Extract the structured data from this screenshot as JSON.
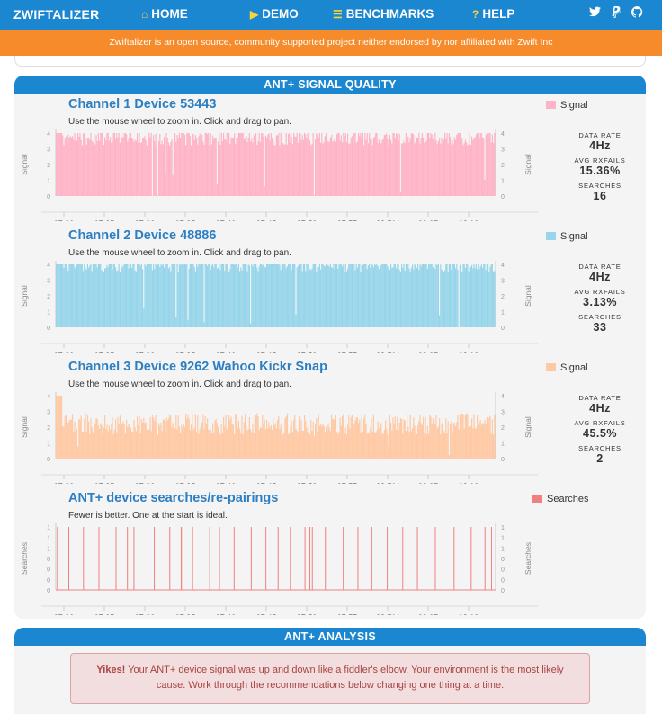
{
  "nav": {
    "brand": "ZWIFTALIZER",
    "home": "HOME",
    "demo": "DEMO",
    "benchmarks": "BENCHMARKS",
    "help": "HELP",
    "social": {
      "twitter": "twitter-icon",
      "paypal": "paypal-icon",
      "github": "github-icon"
    }
  },
  "banner": "Zwiftalizer is an open source, community supported project neither endorsed by nor affiliated with Zwift Inc",
  "signal_panel": {
    "title": "ANT+ SIGNAL QUALITY"
  },
  "analysis_panel": {
    "title": "ANT+ ANALYSIS",
    "alert_strong": "Yikes!",
    "alert_text": " Your ANT+ device signal was up and down like a fiddler's elbow. Your environment is the most likely cause. Work through the recommendations below changing one thing at a time."
  },
  "colors": {
    "ch1": "#ffb3c6",
    "ch2": "#97d5ea",
    "ch3": "#ffc9a3",
    "searches": "#f08080",
    "accent": "#1a87d0",
    "banner": "#f58b2a"
  },
  "channels": [
    {
      "title": "Channel 1 Device 53443",
      "subtitle": "Use the mouse wheel to zoom in. Click and drag to pan.",
      "legend": "Signal",
      "stats": {
        "data_rate_label": "DATA RATE",
        "data_rate": "4Hz",
        "avg_rxfails_label": "AVG RXFAILS",
        "avg_rxfails": "15.36%",
        "searches_label": "SEARCHES",
        "searches": "16"
      }
    },
    {
      "title": "Channel 2 Device 48886",
      "subtitle": "Use the mouse wheel to zoom in. Click and drag to pan.",
      "legend": "Signal",
      "stats": {
        "data_rate_label": "DATA RATE",
        "data_rate": "4Hz",
        "avg_rxfails_label": "AVG RXFAILS",
        "avg_rxfails": "3.13%",
        "searches_label": "SEARCHES",
        "searches": "33"
      }
    },
    {
      "title": "Channel 3 Device 9262 Wahoo Kickr Snap",
      "subtitle": "Use the mouse wheel to zoom in. Click and drag to pan.",
      "legend": "Signal",
      "stats": {
        "data_rate_label": "DATA RATE",
        "data_rate": "4Hz",
        "avg_rxfails_label": "AVG RXFAILS",
        "avg_rxfails": "45.5%",
        "searches_label": "SEARCHES",
        "searches": "2"
      }
    }
  ],
  "searches_chart": {
    "title": "ANT+ device searches/re-pairings",
    "subtitle": "Fewer is better. One at the start is ideal.",
    "legend": "Searches"
  },
  "chart_data": [
    {
      "type": "bar",
      "series_name": "Signal",
      "ylabel": "Signal",
      "ylim": [
        0,
        4
      ],
      "yticks": [
        "0",
        "1",
        "2",
        "3",
        "4"
      ],
      "xticks": [
        "07:20",
        "07:25",
        "07:30",
        "07:35",
        "07:40",
        "07:45",
        "07:50",
        "07:55",
        "08 PM",
        "08:05",
        "08:10"
      ],
      "typical_value": 3.6,
      "min_value": 0,
      "max_value": 4
    },
    {
      "type": "bar",
      "series_name": "Signal",
      "ylabel": "Signal",
      "ylim": [
        0,
        4
      ],
      "yticks": [
        "0",
        "1",
        "2",
        "3",
        "4"
      ],
      "xticks": [
        "07:20",
        "07:25",
        "07:30",
        "07:35",
        "07:40",
        "07:45",
        "07:50",
        "07:55",
        "08 PM",
        "08:05",
        "08:10"
      ],
      "typical_value": 3.9,
      "min_value": 0,
      "max_value": 4
    },
    {
      "type": "bar",
      "series_name": "Signal",
      "ylabel": "Signal",
      "ylim": [
        0,
        4
      ],
      "yticks": [
        "0",
        "1",
        "2",
        "3",
        "4"
      ],
      "xticks": [
        "07:20",
        "07:25",
        "07:30",
        "07:35",
        "07:40",
        "07:45",
        "07:50",
        "07:55",
        "08 PM",
        "08:05",
        "08:10"
      ],
      "typical_value": 2.2,
      "min_value": 0,
      "max_value": 4
    },
    {
      "type": "bar",
      "series_name": "Searches",
      "ylabel": "Searches",
      "ylim": [
        0,
        1
      ],
      "yticks": [
        "0",
        "0",
        "0",
        "0",
        "1",
        "1",
        "1"
      ],
      "xticks": [
        "07:20",
        "07:25",
        "07:30",
        "07:35",
        "07:40",
        "07:45",
        "07:50",
        "07:55",
        "08 PM",
        "08:05",
        "08:10"
      ],
      "search_times": [
        0.2,
        1.6,
        3.4,
        5.3,
        7.4,
        8.8,
        9.6,
        12.1,
        14.0,
        15.4,
        15.6,
        16.8,
        18.9,
        20.1,
        21.9,
        24.0,
        25.8,
        27.3,
        28.8,
        30.6,
        31.2,
        31.5,
        33.1,
        35.3,
        37.1,
        38.8,
        40.7,
        42.6,
        44.4,
        46.6,
        48.9,
        51.0,
        52.7,
        53.5
      ]
    }
  ]
}
